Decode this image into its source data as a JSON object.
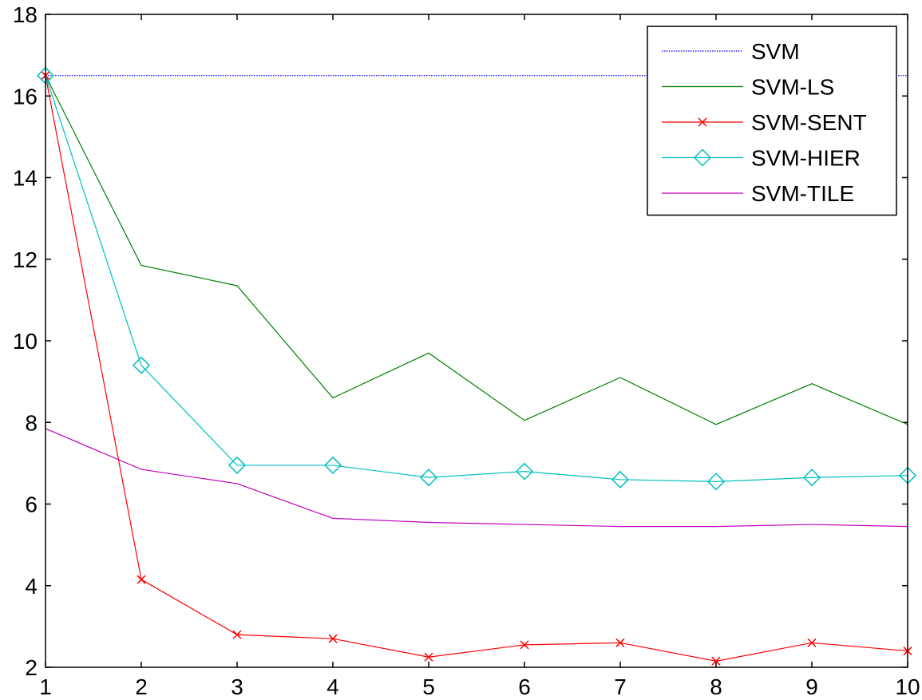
{
  "chart_data": {
    "type": "line",
    "title": "",
    "xlabel": "",
    "ylabel": "",
    "xlim": [
      1,
      10
    ],
    "ylim": [
      2,
      18
    ],
    "x": [
      1,
      2,
      3,
      4,
      5,
      6,
      7,
      8,
      9,
      10
    ],
    "xticks": [
      "1",
      "2",
      "3",
      "4",
      "5",
      "6",
      "7",
      "8",
      "9",
      "10"
    ],
    "yticks": [
      "2",
      "4",
      "6",
      "8",
      "10",
      "12",
      "14",
      "16",
      "18"
    ],
    "grid": false,
    "legend_position": "top-right",
    "series": [
      {
        "name": "SVM",
        "color": "#0000ff",
        "line_style": "dotted",
        "marker": "none",
        "values": [
          16.5,
          16.5,
          16.5,
          16.5,
          16.5,
          16.5,
          16.5,
          16.5,
          16.5,
          16.5
        ]
      },
      {
        "name": "SVM-LS",
        "color": "#008000",
        "line_style": "solid",
        "marker": "none",
        "values": [
          16.5,
          11.85,
          11.35,
          8.6,
          9.7,
          8.05,
          9.1,
          7.95,
          8.95,
          7.95
        ]
      },
      {
        "name": "SVM-SENT",
        "color": "#ff0000",
        "line_style": "solid",
        "marker": "x",
        "values": [
          16.5,
          4.15,
          2.8,
          2.7,
          2.25,
          2.55,
          2.6,
          2.15,
          2.6,
          2.4
        ]
      },
      {
        "name": "SVM-HIER",
        "color": "#00bfbf",
        "line_style": "solid",
        "marker": "diamond",
        "values": [
          16.5,
          9.4,
          6.95,
          6.95,
          6.65,
          6.8,
          6.6,
          6.55,
          6.65,
          6.7
        ]
      },
      {
        "name": "SVM-TILE",
        "color": "#bf00bf",
        "line_style": "solid",
        "marker": "none",
        "values": [
          7.85,
          6.85,
          6.5,
          5.65,
          5.55,
          5.5,
          5.45,
          5.45,
          5.5,
          5.45
        ]
      }
    ]
  }
}
